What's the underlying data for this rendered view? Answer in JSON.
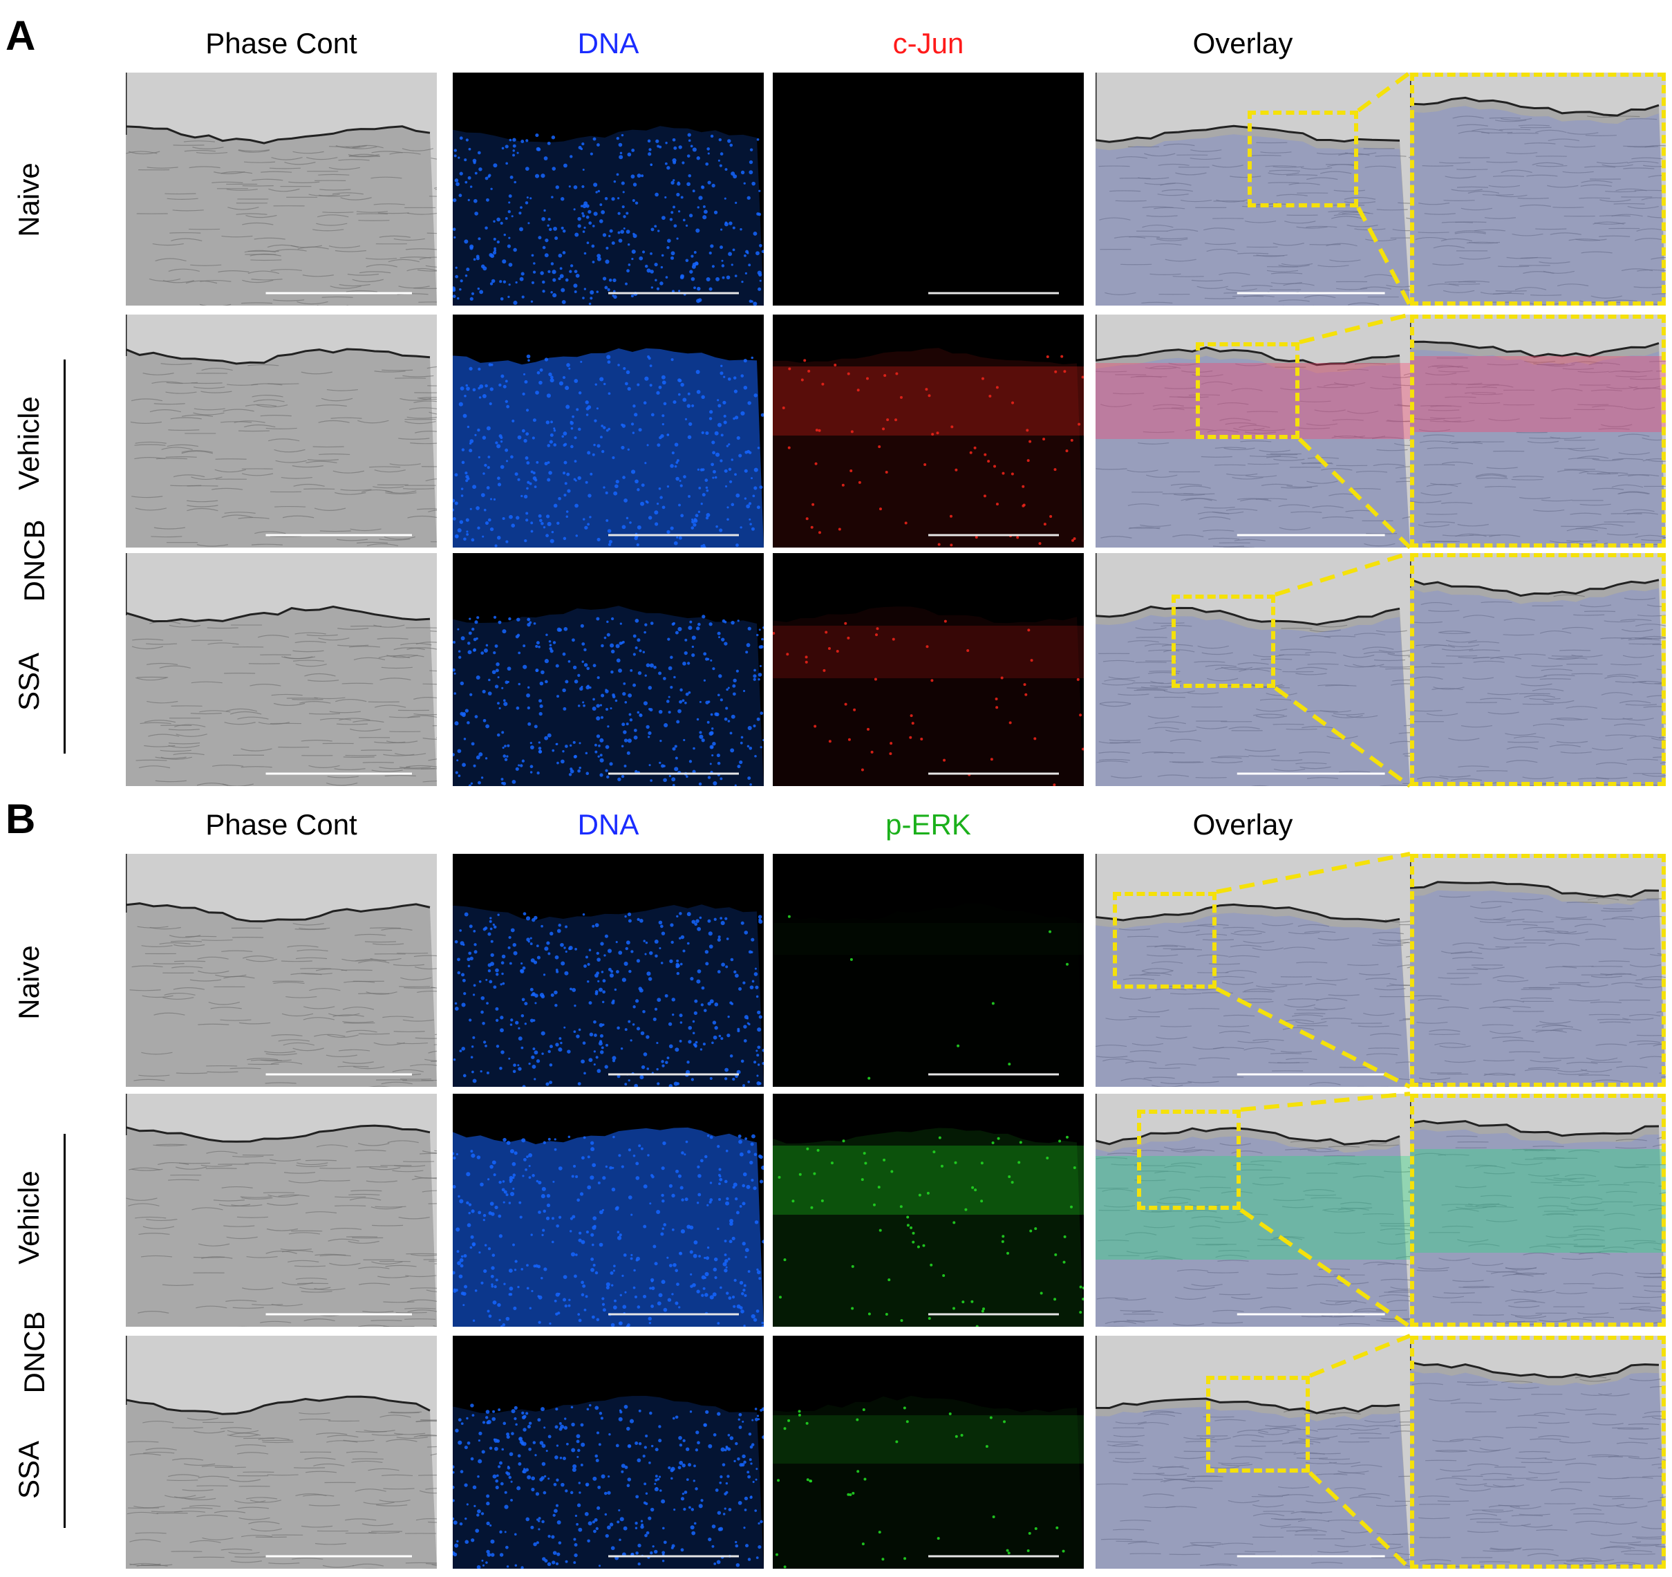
{
  "panels": [
    {
      "letter": "A",
      "columns": [
        "Phase Cont",
        "DNA",
        "c-Jun",
        "Overlay"
      ],
      "column_colors": [
        "#000000",
        "#1a2cff",
        "#ff1a1a",
        "#000000"
      ],
      "rows": [
        "Naive",
        "Vehicle",
        "SSA"
      ],
      "group_label": "DNCB",
      "marker_channel": "red"
    },
    {
      "letter": "B",
      "columns": [
        "Phase Cont",
        "DNA",
        "p-ERK",
        "Overlay"
      ],
      "column_colors": [
        "#000000",
        "#1a2cff",
        "#1bb01b",
        "#000000"
      ],
      "rows": [
        "Naive",
        "Vehicle",
        "SSA"
      ],
      "group_label": "DNCB",
      "marker_channel": "green"
    }
  ],
  "colors": {
    "dna": "#1565ff",
    "cjun": "#e8231a",
    "perk": "#22d422",
    "zoom_box": "#f5e10a",
    "phase_bg": "#bdbdbd"
  }
}
